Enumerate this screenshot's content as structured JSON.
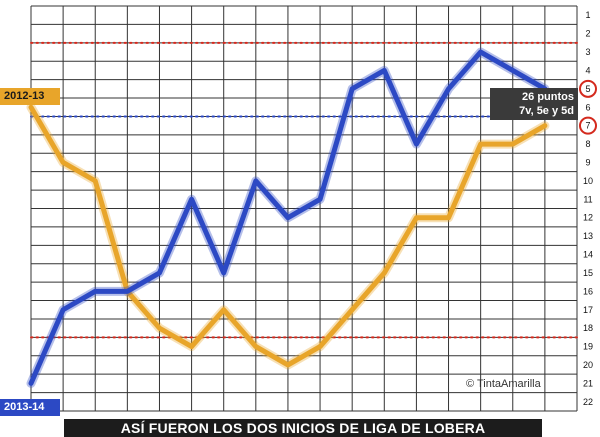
{
  "chart_data": {
    "type": "line",
    "title": "ASÍ FUERON LOS DOS INICIOS DE LIGA DE LOBERA",
    "x": [
      1,
      2,
      3,
      4,
      5,
      6,
      7,
      8,
      9,
      10,
      11,
      12,
      13,
      14,
      15,
      16,
      17
    ],
    "y_ticks": [
      "1",
      "2",
      "3",
      "4",
      "5",
      "6",
      "7",
      "8",
      "9",
      "10",
      "11",
      "12",
      "13",
      "14",
      "15",
      "16",
      "17",
      "18",
      "19",
      "20",
      "21",
      "22"
    ],
    "ylim": [
      1,
      22
    ],
    "y_inverted": true,
    "grid": true,
    "reference_lines": [
      2.5,
      6.5,
      18.5
    ],
    "highlighted_positions": [
      "5",
      "7"
    ],
    "series": [
      {
        "name": "2013-14",
        "color": "#2c49c4",
        "values": [
          21,
          17,
          16,
          16,
          15,
          11,
          15,
          10,
          12,
          11,
          5,
          4,
          8,
          5,
          3,
          4,
          5
        ]
      },
      {
        "name": "2012-13",
        "color": "#e8a52a",
        "values": [
          6,
          9,
          10,
          16,
          18,
          19,
          17,
          19,
          20,
          19,
          17,
          15,
          12,
          12,
          8,
          8,
          7
        ]
      }
    ],
    "annotation": {
      "line1": "26 puntos",
      "line2": "7v, 5e y 5d"
    },
    "credit": "© TintaAmarilla"
  }
}
